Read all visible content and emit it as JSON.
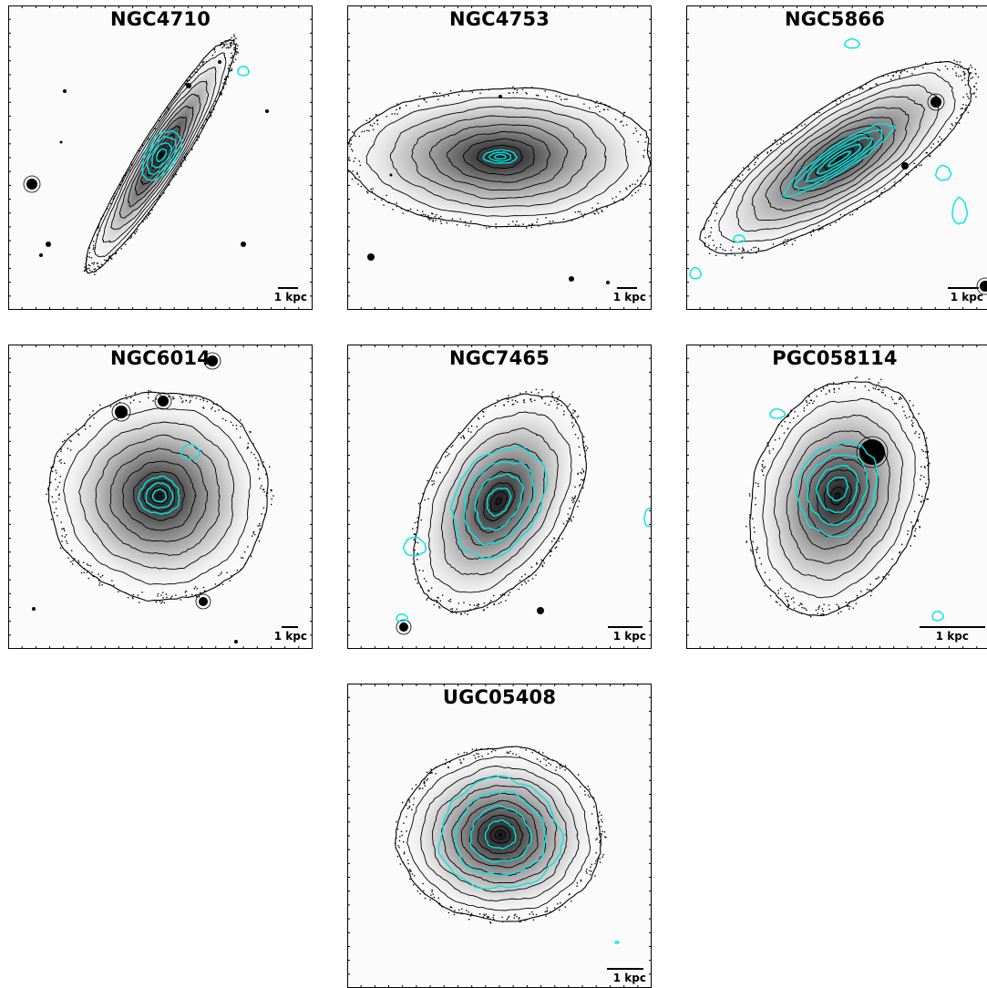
{
  "figure": {
    "contour_colors": {
      "isophote": "#000000",
      "co_emission": "#00e5e5",
      "frame": "#000000"
    },
    "panels": [
      {
        "id": "ngc4710",
        "title": "NGC4710",
        "scale_label": "1 kpc",
        "morphology": "edge-on",
        "inclination_axis_ratio": 0.16,
        "position_angle_deg": -58
      },
      {
        "id": "ngc4753",
        "title": "NGC4753",
        "scale_label": "1 kpc",
        "morphology": "dusty-spiral",
        "inclination_axis_ratio": 0.45,
        "position_angle_deg": 0
      },
      {
        "id": "ngc5866",
        "title": "NGC5866",
        "scale_label": "1 kpc",
        "morphology": "edge-on-elongated",
        "inclination_axis_ratio": 0.33,
        "position_angle_deg": -33
      },
      {
        "id": "ngc6014",
        "title": "NGC6014",
        "scale_label": "1 kpc",
        "morphology": "face-on-ring",
        "inclination_axis_ratio": 0.95,
        "position_angle_deg": 0
      },
      {
        "id": "ngc7465",
        "title": "NGC7465",
        "scale_label": "1 kpc",
        "morphology": "inclined-disc",
        "inclination_axis_ratio": 0.6,
        "position_angle_deg": -60
      },
      {
        "id": "pgc058114",
        "title": "PGC058114",
        "scale_label": "1 kpc",
        "morphology": "inclined-compact",
        "inclination_axis_ratio": 0.7,
        "position_angle_deg": -70
      },
      {
        "id": "ugc05408",
        "title": "UGC05408",
        "scale_label": "1 kpc",
        "morphology": "face-on-compact",
        "inclination_axis_ratio": 0.85,
        "position_angle_deg": 0
      }
    ]
  }
}
